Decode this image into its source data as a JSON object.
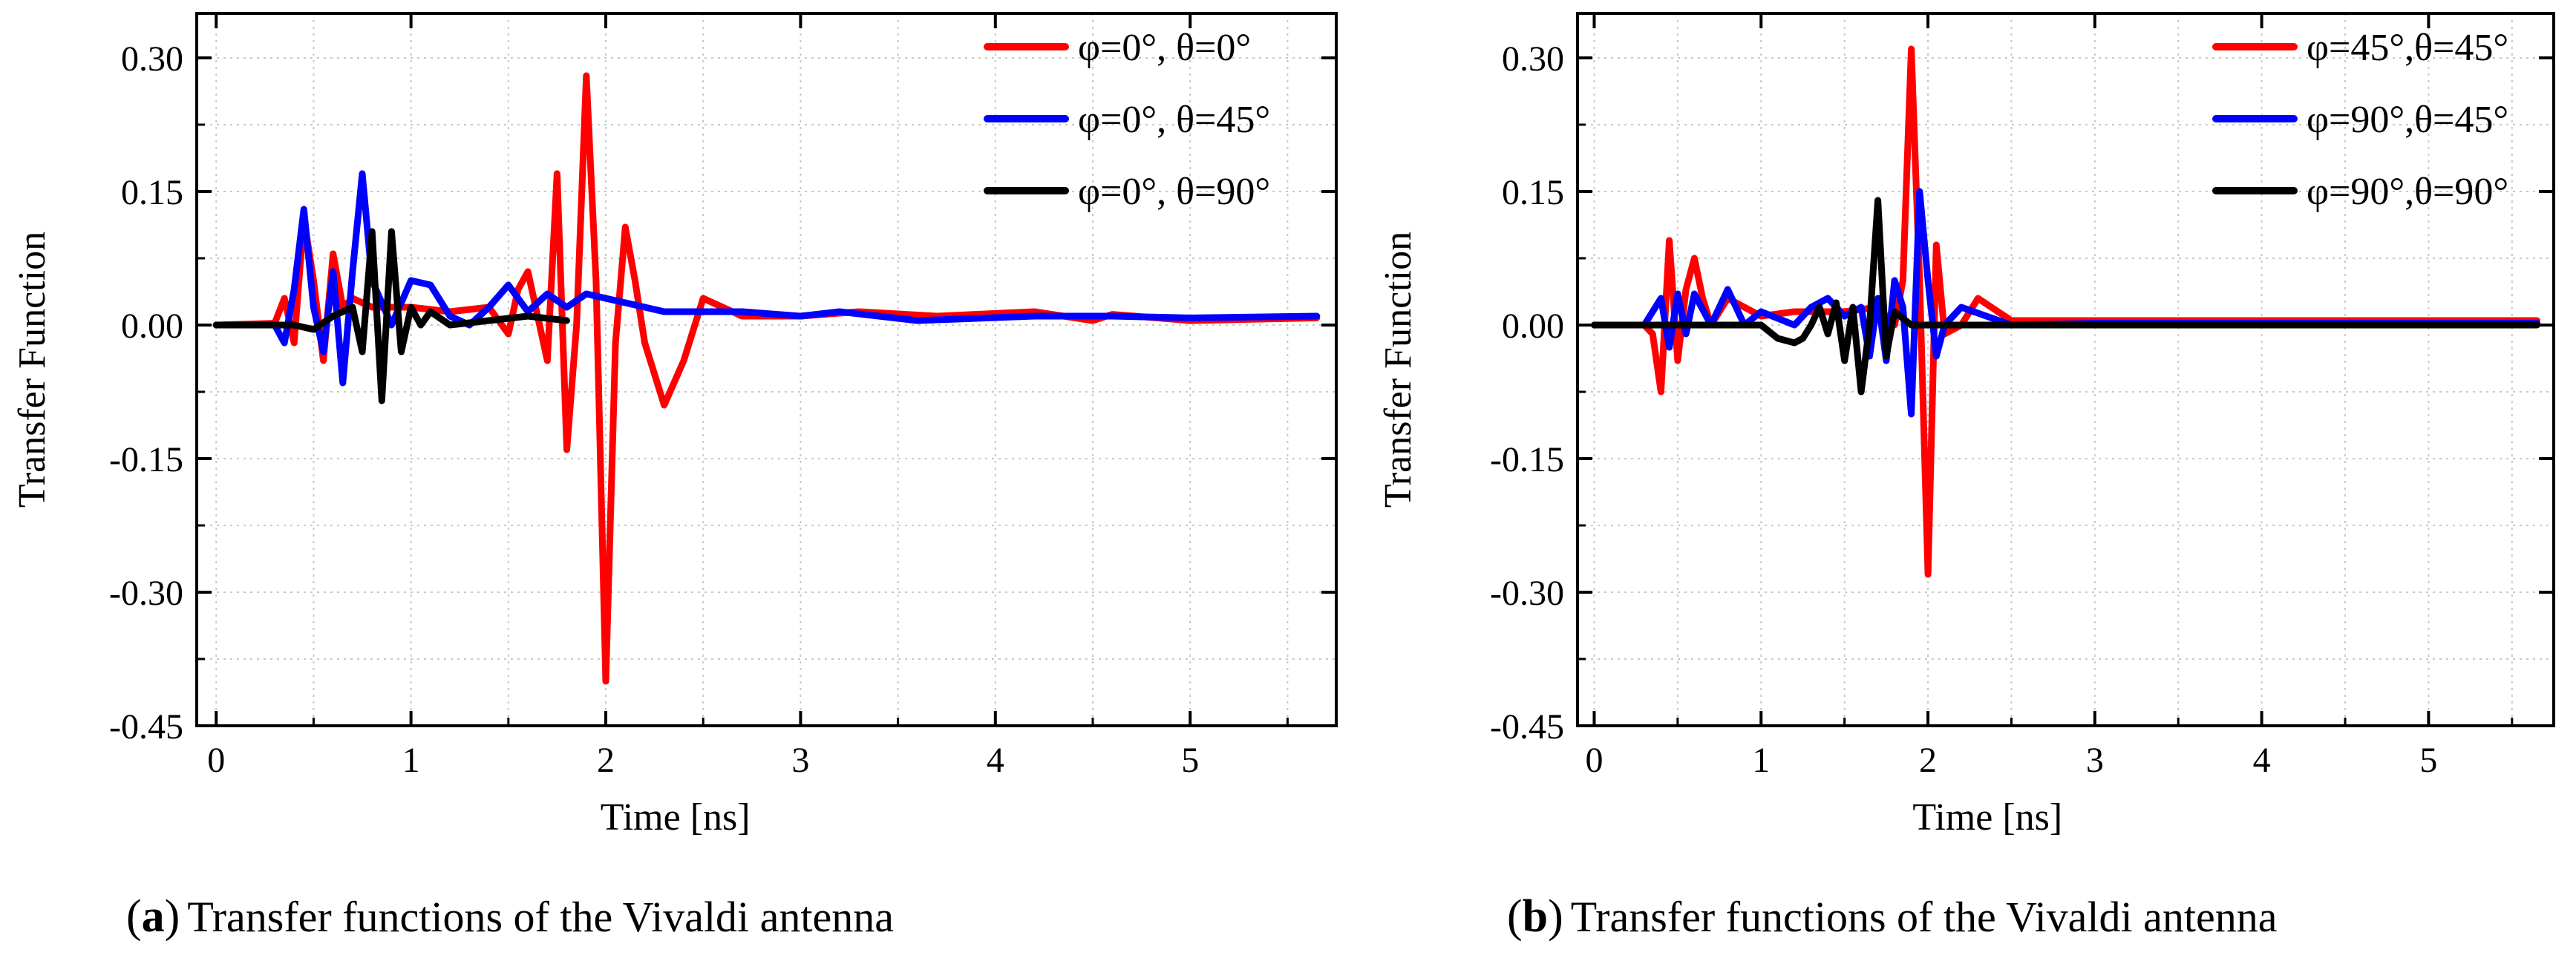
{
  "chart_data": [
    {
      "type": "line",
      "panel_label": "a",
      "caption": "Transfer functions of the Vivaldi antenna",
      "xlabel": "Time [ns]",
      "ylabel": "Transfer Function",
      "xlim": [
        -0.1,
        5.75
      ],
      "ylim": [
        -0.45,
        0.35
      ],
      "xticks": [
        0,
        1,
        2,
        3,
        4,
        5
      ],
      "xtick_labels": [
        "0",
        "1",
        "2",
        "3",
        "4",
        "5"
      ],
      "yticks": [
        -0.45,
        -0.3,
        -0.15,
        0.0,
        0.15,
        0.3
      ],
      "ytick_labels": [
        "-0.45",
        "-0.30",
        "-0.15",
        "0.00",
        "0.15",
        "0.30"
      ],
      "grid": true,
      "legend_position": "top-right",
      "series": [
        {
          "name": "φ=0°, θ=0°",
          "color": "#ff0000",
          "x": [
            0,
            0.3,
            0.35,
            0.4,
            0.45,
            0.5,
            0.55,
            0.6,
            0.65,
            0.7,
            0.8,
            1.0,
            1.2,
            1.4,
            1.5,
            1.55,
            1.6,
            1.65,
            1.7,
            1.75,
            1.8,
            1.85,
            1.9,
            1.95,
            2.0,
            2.05,
            2.1,
            2.15,
            2.2,
            2.3,
            2.4,
            2.5,
            2.7,
            3.0,
            3.3,
            3.7,
            4.2,
            4.5,
            4.6,
            5.0,
            5.65
          ],
          "y": [
            0,
            0.002,
            0.03,
            -0.02,
            0.12,
            0.05,
            -0.04,
            0.08,
            0.02,
            0.03,
            0.02,
            0.02,
            0.015,
            0.02,
            -0.01,
            0.04,
            0.06,
            0.01,
            -0.04,
            0.17,
            -0.14,
            0.0,
            0.28,
            0.05,
            -0.4,
            -0.02,
            0.11,
            0.05,
            -0.02,
            -0.09,
            -0.04,
            0.03,
            0.01,
            0.01,
            0.015,
            0.01,
            0.015,
            0.005,
            0.012,
            0.005,
            0.008
          ]
        },
        {
          "name": "φ=0°, θ=45°",
          "color": "#0000ff",
          "x": [
            0,
            0.3,
            0.35,
            0.4,
            0.45,
            0.5,
            0.55,
            0.6,
            0.65,
            0.7,
            0.75,
            0.8,
            0.9,
            1.0,
            1.1,
            1.2,
            1.3,
            1.4,
            1.5,
            1.55,
            1.6,
            1.7,
            1.8,
            1.9,
            2.0,
            2.3,
            2.7,
            3.0,
            3.2,
            3.6,
            4.2,
            4.6,
            5.0,
            5.65
          ],
          "y": [
            0,
            0.0,
            -0.02,
            0.04,
            0.13,
            0.02,
            -0.03,
            0.06,
            -0.065,
            0.06,
            0.17,
            0.05,
            0.0,
            0.05,
            0.045,
            0.01,
            0.0,
            0.02,
            0.045,
            0.03,
            0.015,
            0.035,
            0.02,
            0.035,
            0.03,
            0.015,
            0.015,
            0.01,
            0.015,
            0.005,
            0.01,
            0.01,
            0.008,
            0.01
          ]
        },
        {
          "name": "φ=0°, θ=90°",
          "color": "#000000",
          "x": [
            0,
            0.4,
            0.5,
            0.6,
            0.7,
            0.75,
            0.8,
            0.85,
            0.9,
            0.95,
            1.0,
            1.05,
            1.1,
            1.2,
            1.4,
            1.6,
            1.8
          ],
          "y": [
            0,
            0.0,
            -0.005,
            0.01,
            0.02,
            -0.03,
            0.105,
            -0.085,
            0.105,
            -0.03,
            0.02,
            0.0,
            0.015,
            0.0,
            0.005,
            0.01,
            0.005
          ]
        }
      ]
    },
    {
      "type": "line",
      "panel_label": "b",
      "caption": "Transfer functions of the Vivaldi antenna",
      "xlabel": "Time [ns]",
      "ylabel": "Transfer Function",
      "xlim": [
        -0.1,
        5.75
      ],
      "ylim": [
        -0.45,
        0.35
      ],
      "xticks": [
        0,
        1,
        2,
        3,
        4,
        5
      ],
      "xtick_labels": [
        "0",
        "1",
        "2",
        "3",
        "4",
        "5"
      ],
      "yticks": [
        -0.45,
        -0.3,
        -0.15,
        0.0,
        0.15,
        0.3
      ],
      "ytick_labels": [
        "-0.45",
        "-0.30",
        "-0.15",
        "0.00",
        "0.15",
        "0.30"
      ],
      "grid": true,
      "legend_position": "top-right",
      "series": [
        {
          "name": "φ=45°,θ=45°",
          "color": "#ff0000",
          "x": [
            0,
            0.3,
            0.35,
            0.4,
            0.45,
            0.5,
            0.55,
            0.6,
            0.65,
            0.7,
            0.8,
            1.0,
            1.2,
            1.5,
            1.7,
            1.8,
            1.85,
            1.9,
            1.95,
            2.0,
            2.05,
            2.1,
            2.2,
            2.3,
            2.5,
            3.0,
            4.0,
            5.0,
            5.65
          ],
          "y": [
            0,
            0.0,
            -0.01,
            -0.075,
            0.095,
            -0.04,
            0.04,
            0.075,
            0.03,
            0.0,
            0.03,
            0.01,
            0.015,
            0.015,
            0.02,
            0.0,
            0.05,
            0.31,
            0.05,
            -0.28,
            0.09,
            -0.01,
            0.0,
            0.03,
            0.005,
            0.005,
            0.005,
            0.005,
            0.005
          ]
        },
        {
          "name": "φ=90°,θ=45°",
          "color": "#0000ff",
          "x": [
            0,
            0.3,
            0.4,
            0.45,
            0.5,
            0.55,
            0.6,
            0.7,
            0.8,
            0.9,
            1.0,
            1.2,
            1.3,
            1.4,
            1.5,
            1.6,
            1.65,
            1.7,
            1.75,
            1.8,
            1.85,
            1.9,
            1.95,
            2.0,
            2.05,
            2.1,
            2.2,
            2.5,
            3.0,
            5.65
          ],
          "y": [
            0,
            0.0,
            0.03,
            -0.025,
            0.035,
            -0.01,
            0.035,
            0.0,
            0.04,
            0.0,
            0.015,
            0.0,
            0.02,
            0.03,
            0.01,
            0.02,
            -0.035,
            0.03,
            -0.04,
            0.05,
            0.02,
            -0.1,
            0.15,
            0.05,
            -0.035,
            0.0,
            0.02,
            0.0,
            0.002,
            0.002
          ]
        },
        {
          "name": "φ=90°,θ=90°",
          "color": "#000000",
          "x": [
            0,
            0.6,
            1.0,
            1.1,
            1.2,
            1.25,
            1.3,
            1.35,
            1.4,
            1.45,
            1.5,
            1.55,
            1.6,
            1.65,
            1.7,
            1.75,
            1.8,
            1.9,
            2.0,
            2.5,
            3.0,
            4.0,
            5.0,
            5.65
          ],
          "y": [
            0,
            0.0,
            0.0,
            -0.015,
            -0.02,
            -0.015,
            0.0,
            0.02,
            -0.01,
            0.025,
            -0.04,
            0.02,
            -0.075,
            0.0,
            0.14,
            -0.035,
            0.015,
            0.0,
            0.0,
            0.0,
            0.0,
            0.0,
            0.0,
            0.0
          ]
        }
      ]
    }
  ]
}
